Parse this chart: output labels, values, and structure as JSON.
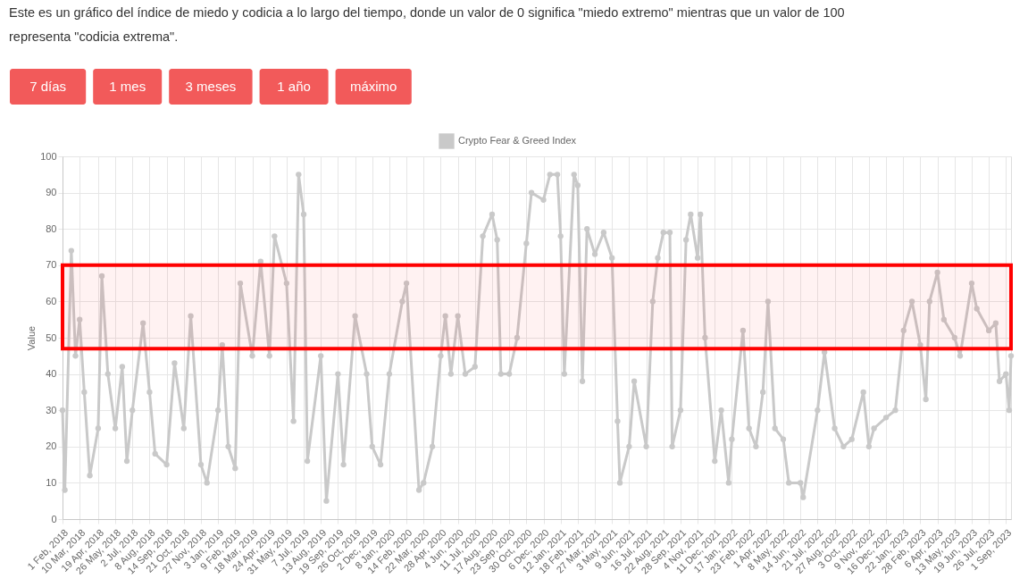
{
  "chart_data": {
    "type": "line",
    "title": "Este es un gráfico del índice de miedo y codicia a lo largo del tiempo, donde un valor de 0 significa \"miedo extremo\" mientras que un valor de 100 representa \"codicia extrema\".",
    "annotations": [
      "7 días",
      "1 mes",
      "3 meses",
      "1 año",
      "máximo"
    ],
    "ylabel": "Value",
    "x": [
      "2018-02-01",
      "2018-02-06",
      "2018-02-20",
      "2018-03-01",
      "2018-03-10",
      "2018-03-20",
      "2018-04-01",
      "2018-04-19",
      "2018-04-27",
      "2018-05-10",
      "2018-05-26",
      "2018-06-10",
      "2018-06-20",
      "2018-07-02",
      "2018-07-25",
      "2018-08-08",
      "2018-08-20",
      "2018-09-14",
      "2018-10-01",
      "2018-10-21",
      "2018-11-05",
      "2018-11-27",
      "2018-12-10",
      "2019-01-03",
      "2019-01-12",
      "2019-01-25",
      "2019-02-09",
      "2019-02-20",
      "2019-03-18",
      "2019-04-05",
      "2019-04-24",
      "2019-05-05",
      "2019-05-31",
      "2019-06-15",
      "2019-06-26",
      "2019-07-07",
      "2019-07-15",
      "2019-08-13",
      "2019-08-25",
      "2019-09-19",
      "2019-10-01",
      "2019-10-26",
      "2019-11-20",
      "2019-12-02",
      "2019-12-20",
      "2020-01-08",
      "2020-02-05",
      "2020-02-14",
      "2020-03-12",
      "2020-03-22",
      "2020-04-10",
      "2020-04-28",
      "2020-05-08",
      "2020-05-20",
      "2020-06-04",
      "2020-06-20",
      "2020-07-11",
      "2020-07-28",
      "2020-08-17",
      "2020-08-28",
      "2020-09-05",
      "2020-09-23",
      "2020-10-10",
      "2020-10-30",
      "2020-11-10",
      "2020-12-06",
      "2020-12-20",
      "2021-01-05",
      "2021-01-12",
      "2021-01-20",
      "2021-02-10",
      "2021-02-18",
      "2021-02-28",
      "2021-03-10",
      "2021-03-27",
      "2021-04-15",
      "2021-05-03",
      "2021-05-15",
      "2021-05-20",
      "2021-06-09",
      "2021-06-20",
      "2021-07-16",
      "2021-07-30",
      "2021-08-10",
      "2021-08-22",
      "2021-09-05",
      "2021-09-10",
      "2021-09-28",
      "2021-10-10",
      "2021-10-20",
      "2021-11-04",
      "2021-11-10",
      "2021-11-20",
      "2021-12-11",
      "2021-12-25",
      "2022-01-10",
      "2022-01-17",
      "2022-02-10",
      "2022-02-23",
      "2022-03-10",
      "2022-03-25",
      "2022-04-05",
      "2022-04-20",
      "2022-05-08",
      "2022-05-20",
      "2022-06-14",
      "2022-06-20",
      "2022-07-21",
      "2022-08-05",
      "2022-08-27",
      "2022-09-15",
      "2022-10-03",
      "2022-10-28",
      "2022-11-09",
      "2022-11-20",
      "2022-12-16",
      "2023-01-05",
      "2023-01-23",
      "2023-02-10",
      "2023-02-28",
      "2023-03-12",
      "2023-03-20",
      "2023-04-06",
      "2023-04-20",
      "2023-05-13",
      "2023-05-25",
      "2023-06-19",
      "2023-06-30",
      "2023-07-26",
      "2023-08-10",
      "2023-08-18",
      "2023-09-01",
      "2023-09-08",
      "2023-09-12"
    ],
    "series": [
      {
        "name": "Crypto Fear & Greed Index",
        "color": "#c9c9c9",
        "values": [
          30,
          8,
          74,
          45,
          55,
          35,
          12,
          25,
          67,
          40,
          25,
          42,
          16,
          30,
          54,
          35,
          18,
          15,
          43,
          25,
          56,
          15,
          10,
          30,
          48,
          20,
          14,
          65,
          45,
          71,
          45,
          78,
          65,
          27,
          95,
          84,
          16,
          45,
          5,
          40,
          15,
          56,
          40,
          20,
          15,
          40,
          60,
          65,
          8,
          10,
          20,
          45,
          56,
          40,
          56,
          40,
          42,
          78,
          84,
          77,
          40,
          40,
          50,
          76,
          90,
          88,
          95,
          95,
          78,
          40,
          95,
          92,
          38,
          80,
          73,
          79,
          72,
          27,
          10,
          20,
          38,
          20,
          60,
          72,
          79,
          79,
          20,
          30,
          77,
          84,
          72,
          84,
          50,
          16,
          30,
          10,
          22,
          52,
          25,
          20,
          35,
          60,
          25,
          22,
          10,
          10,
          6,
          30,
          46,
          25,
          20,
          22,
          35,
          20,
          25,
          28,
          30,
          52,
          60,
          48,
          33,
          60,
          68,
          55,
          50,
          45,
          65,
          58,
          52,
          54,
          38,
          40,
          30,
          45
        ]
      }
    ],
    "xlim": [
      "2018-02-01",
      "2023-09-12"
    ],
    "xticks": [
      {
        "value": "2018-02-01",
        "label": "1 Feb, 2018"
      },
      {
        "value": "2018-03-10",
        "label": "10 Mar, 2018"
      },
      {
        "value": "2018-04-19",
        "label": "19 Apr, 2018"
      },
      {
        "value": "2018-05-26",
        "label": "26 May, 2018"
      },
      {
        "value": "2018-07-02",
        "label": "2 Jul, 2018"
      },
      {
        "value": "2018-08-08",
        "label": "8 Aug, 2018"
      },
      {
        "value": "2018-09-14",
        "label": "14 Sep, 2018"
      },
      {
        "value": "2018-10-21",
        "label": "21 Oct, 2018"
      },
      {
        "value": "2018-11-27",
        "label": "27 Nov, 2018"
      },
      {
        "value": "2019-01-03",
        "label": "3 Jan, 2019"
      },
      {
        "value": "2019-02-09",
        "label": "9 Feb, 2019"
      },
      {
        "value": "2019-03-18",
        "label": "18 Mar, 2019"
      },
      {
        "value": "2019-04-24",
        "label": "24 Apr, 2019"
      },
      {
        "value": "2019-05-31",
        "label": "31 May, 2019"
      },
      {
        "value": "2019-07-07",
        "label": "7 Jul, 2019"
      },
      {
        "value": "2019-08-13",
        "label": "13 Aug, 2019"
      },
      {
        "value": "2019-09-19",
        "label": "19 Sep, 2019"
      },
      {
        "value": "2019-10-26",
        "label": "26 Oct, 2019"
      },
      {
        "value": "2019-12-02",
        "label": "2 Dec, 2019"
      },
      {
        "value": "2020-01-08",
        "label": "8 Jan, 2020"
      },
      {
        "value": "2020-02-14",
        "label": "14 Feb, 2020"
      },
      {
        "value": "2020-03-22",
        "label": "22 Mar, 2020"
      },
      {
        "value": "2020-04-28",
        "label": "28 Apr, 2020"
      },
      {
        "value": "2020-06-04",
        "label": "4 Jun, 2020"
      },
      {
        "value": "2020-07-11",
        "label": "11 Jul, 2020"
      },
      {
        "value": "2020-08-17",
        "label": "17 Aug, 2020"
      },
      {
        "value": "2020-09-23",
        "label": "23 Sep, 2020"
      },
      {
        "value": "2020-10-30",
        "label": "30 Oct, 2020"
      },
      {
        "value": "2020-12-06",
        "label": "6 Dec, 2020"
      },
      {
        "value": "2021-01-12",
        "label": "12 Jan, 2021"
      },
      {
        "value": "2021-02-18",
        "label": "18 Feb, 2021"
      },
      {
        "value": "2021-03-27",
        "label": "27 Mar, 2021"
      },
      {
        "value": "2021-05-03",
        "label": "3 May, 2021"
      },
      {
        "value": "2021-06-09",
        "label": "9 Jun, 2021"
      },
      {
        "value": "2021-07-16",
        "label": "16 Jul, 2021"
      },
      {
        "value": "2021-08-22",
        "label": "22 Aug, 2021"
      },
      {
        "value": "2021-09-28",
        "label": "28 Sep, 2021"
      },
      {
        "value": "2021-11-04",
        "label": "4 Nov, 2021"
      },
      {
        "value": "2021-12-11",
        "label": "11 Dec, 2021"
      },
      {
        "value": "2022-01-17",
        "label": "17 Jan, 2022"
      },
      {
        "value": "2022-02-23",
        "label": "23 Feb, 2022"
      },
      {
        "value": "2022-04-01",
        "label": "1 Apr, 2022"
      },
      {
        "value": "2022-05-08",
        "label": "8 May, 2022"
      },
      {
        "value": "2022-06-14",
        "label": "14 Jun, 2022"
      },
      {
        "value": "2022-07-21",
        "label": "21 Jul, 2022"
      },
      {
        "value": "2022-08-27",
        "label": "27 Aug, 2022"
      },
      {
        "value": "2022-10-03",
        "label": "3 Oct, 2022"
      },
      {
        "value": "2022-11-09",
        "label": "9 Nov, 2022"
      },
      {
        "value": "2022-12-16",
        "label": "16 Dec, 2022"
      },
      {
        "value": "2023-01-22",
        "label": "22 Jan, 2023"
      },
      {
        "value": "2023-02-28",
        "label": "28 Feb, 2023"
      },
      {
        "value": "2023-04-06",
        "label": "6 Apr, 2023"
      },
      {
        "value": "2023-05-13",
        "label": "13 May, 2023"
      },
      {
        "value": "2023-06-19",
        "label": "19 Jun, 2023"
      },
      {
        "value": "2023-07-26",
        "label": "26 Jul, 2023"
      },
      {
        "value": "2023-09-01",
        "label": "1 Sep, 2023"
      }
    ],
    "ylim": [
      0,
      100
    ],
    "yticks": [
      0,
      10,
      20,
      30,
      40,
      50,
      60,
      70,
      80,
      90,
      100
    ],
    "grid": true,
    "legend": "top",
    "marker": "circle",
    "line_style": "solid",
    "bands": [
      {
        "axis": "y",
        "from": 47,
        "to": 70,
        "color": "#ff0000"
      }
    ]
  }
}
